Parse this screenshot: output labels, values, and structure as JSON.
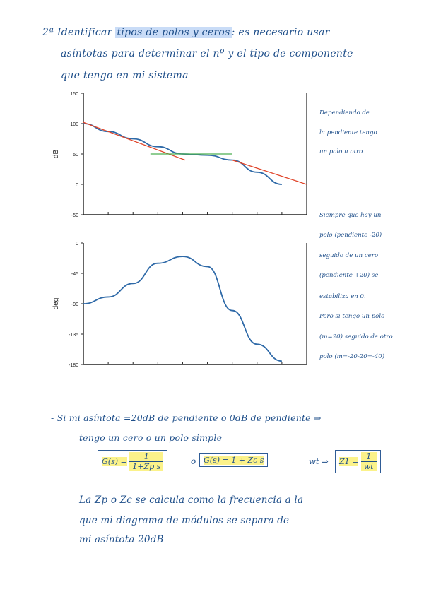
{
  "header": {
    "line1_prefix": "2ª",
    "line1_text": "Identificar",
    "line1_hl": "tipos de polos y ceros",
    "line1_rest": ": es necesario usar",
    "line2": "asíntotas para determinar el nº y el tipo de componente",
    "line3": "que tengo en mi sistema"
  },
  "magnitude_plot": {
    "ylabel": "dB",
    "yticks": [
      "150",
      "100",
      "50",
      "0",
      "-50"
    ]
  },
  "phase_plot": {
    "ylabel": "deg",
    "yticks": [
      "0",
      "-45",
      "-90",
      "-135",
      "-180"
    ]
  },
  "side_notes": {
    "note1": [
      "Dependiendo de",
      "la pendiente tengo",
      "un polo u otro"
    ],
    "note2": [
      "Siempre que hay un",
      "polo (pendiente -20)",
      "seguido de un cero",
      "(pendiente +20) se",
      "estabiliza en 0.",
      "Pero si tengo un polo",
      "(m=20) seguido de otro",
      "polo (m=-20-20=-40)"
    ]
  },
  "asymptote_note": {
    "line1": "- Si mi asíntota =20dB de pendiente o 0dB de pendiente ⇒",
    "line2": "tengo un cero o un polo simple"
  },
  "formulas": {
    "g_pole_left": "G(s) =",
    "g_pole_num": "1",
    "g_pole_den": "1+Zp s",
    "or": "o",
    "g_zero": "G(s) = 1 + Zc s",
    "wt_prefix": "wt ⇒",
    "tau": "Z1 =",
    "tau_num": "1",
    "tau_den": "wt"
  },
  "closing": {
    "line1": "La Zp o Zc se calcula como la frecuencia a la",
    "line2": "que mi diagrama de módulos se separa de",
    "line3": "mi asíntota 20dB"
  },
  "chart_data": [
    {
      "type": "line",
      "title": "",
      "ylabel": "dB",
      "ylim": [
        -50,
        150
      ],
      "yticks": [
        150,
        100,
        50,
        0,
        -50
      ],
      "x_index": [
        0,
        1,
        2,
        3,
        4,
        5,
        6,
        7,
        8
      ],
      "series": [
        {
          "values": [
            100,
            87,
            75,
            62,
            50,
            48,
            40,
            20,
            0
          ],
          "color": "#2f6aa8"
        }
      ],
      "asymptotes": [
        {
          "color": "#e0452a",
          "points": [
            [
              0,
              102
            ],
            [
              4.1,
              40
            ]
          ]
        },
        {
          "color": "#4caf50",
          "points": [
            [
              2.7,
              50
            ],
            [
              6.0,
              50
            ]
          ]
        },
        {
          "color": "#e0452a",
          "points": [
            [
              6.0,
              40
            ],
            [
              9.0,
              0
            ]
          ]
        }
      ]
    },
    {
      "type": "line",
      "title": "",
      "ylabel": "deg",
      "ylim": [
        -180,
        0
      ],
      "yticks": [
        0,
        -45,
        -90,
        -135,
        -180
      ],
      "x_index": [
        0,
        1,
        2,
        3,
        4,
        5,
        6,
        7,
        8
      ],
      "series": [
        {
          "values": [
            -90,
            -80,
            -60,
            -30,
            -20,
            -35,
            -100,
            -150,
            -175
          ],
          "color": "#2f6aa8"
        }
      ]
    }
  ]
}
